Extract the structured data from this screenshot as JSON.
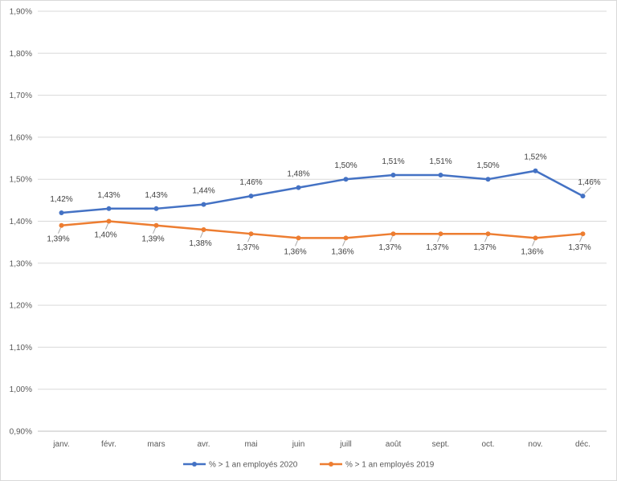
{
  "chart_data": {
    "type": "line",
    "title": "",
    "xlabel": "",
    "ylabel": "",
    "categories": [
      "janv.",
      "févr.",
      "mars",
      "avr.",
      "mai",
      "juin",
      "juill",
      "août",
      "sept.",
      "oct.",
      "nov.",
      "déc."
    ],
    "y_ticks": [
      "0,90%",
      "1,00%",
      "1,10%",
      "1,20%",
      "1,30%",
      "1,40%",
      "1,50%",
      "1,60%",
      "1,70%",
      "1,80%",
      "1,90%"
    ],
    "ylim": [
      0.9,
      1.9
    ],
    "grid": true,
    "legend_position": "bottom",
    "series": [
      {
        "name": "% > 1 an employés 2020",
        "color": "#4472c4",
        "values": [
          1.42,
          1.43,
          1.43,
          1.44,
          1.46,
          1.48,
          1.5,
          1.51,
          1.51,
          1.5,
          1.52,
          1.46
        ],
        "labels": [
          "1,42%",
          "1,43%",
          "1,43%",
          "1,44%",
          "1,46%",
          "1,48%",
          "1,50%",
          "1,51%",
          "1,51%",
          "1,50%",
          "1,52%",
          "1,46%"
        ]
      },
      {
        "name": "% > 1 an employés 2019",
        "color": "#ed7d31",
        "values": [
          1.39,
          1.4,
          1.39,
          1.38,
          1.37,
          1.36,
          1.36,
          1.37,
          1.37,
          1.37,
          1.36,
          1.37
        ],
        "labels": [
          "1,39%",
          "1,40%",
          "1,39%",
          "1,38%",
          "1,37%",
          "1,36%",
          "1,36%",
          "1,37%",
          "1,37%",
          "1,37%",
          "1,36%",
          "1,37%"
        ]
      }
    ]
  }
}
